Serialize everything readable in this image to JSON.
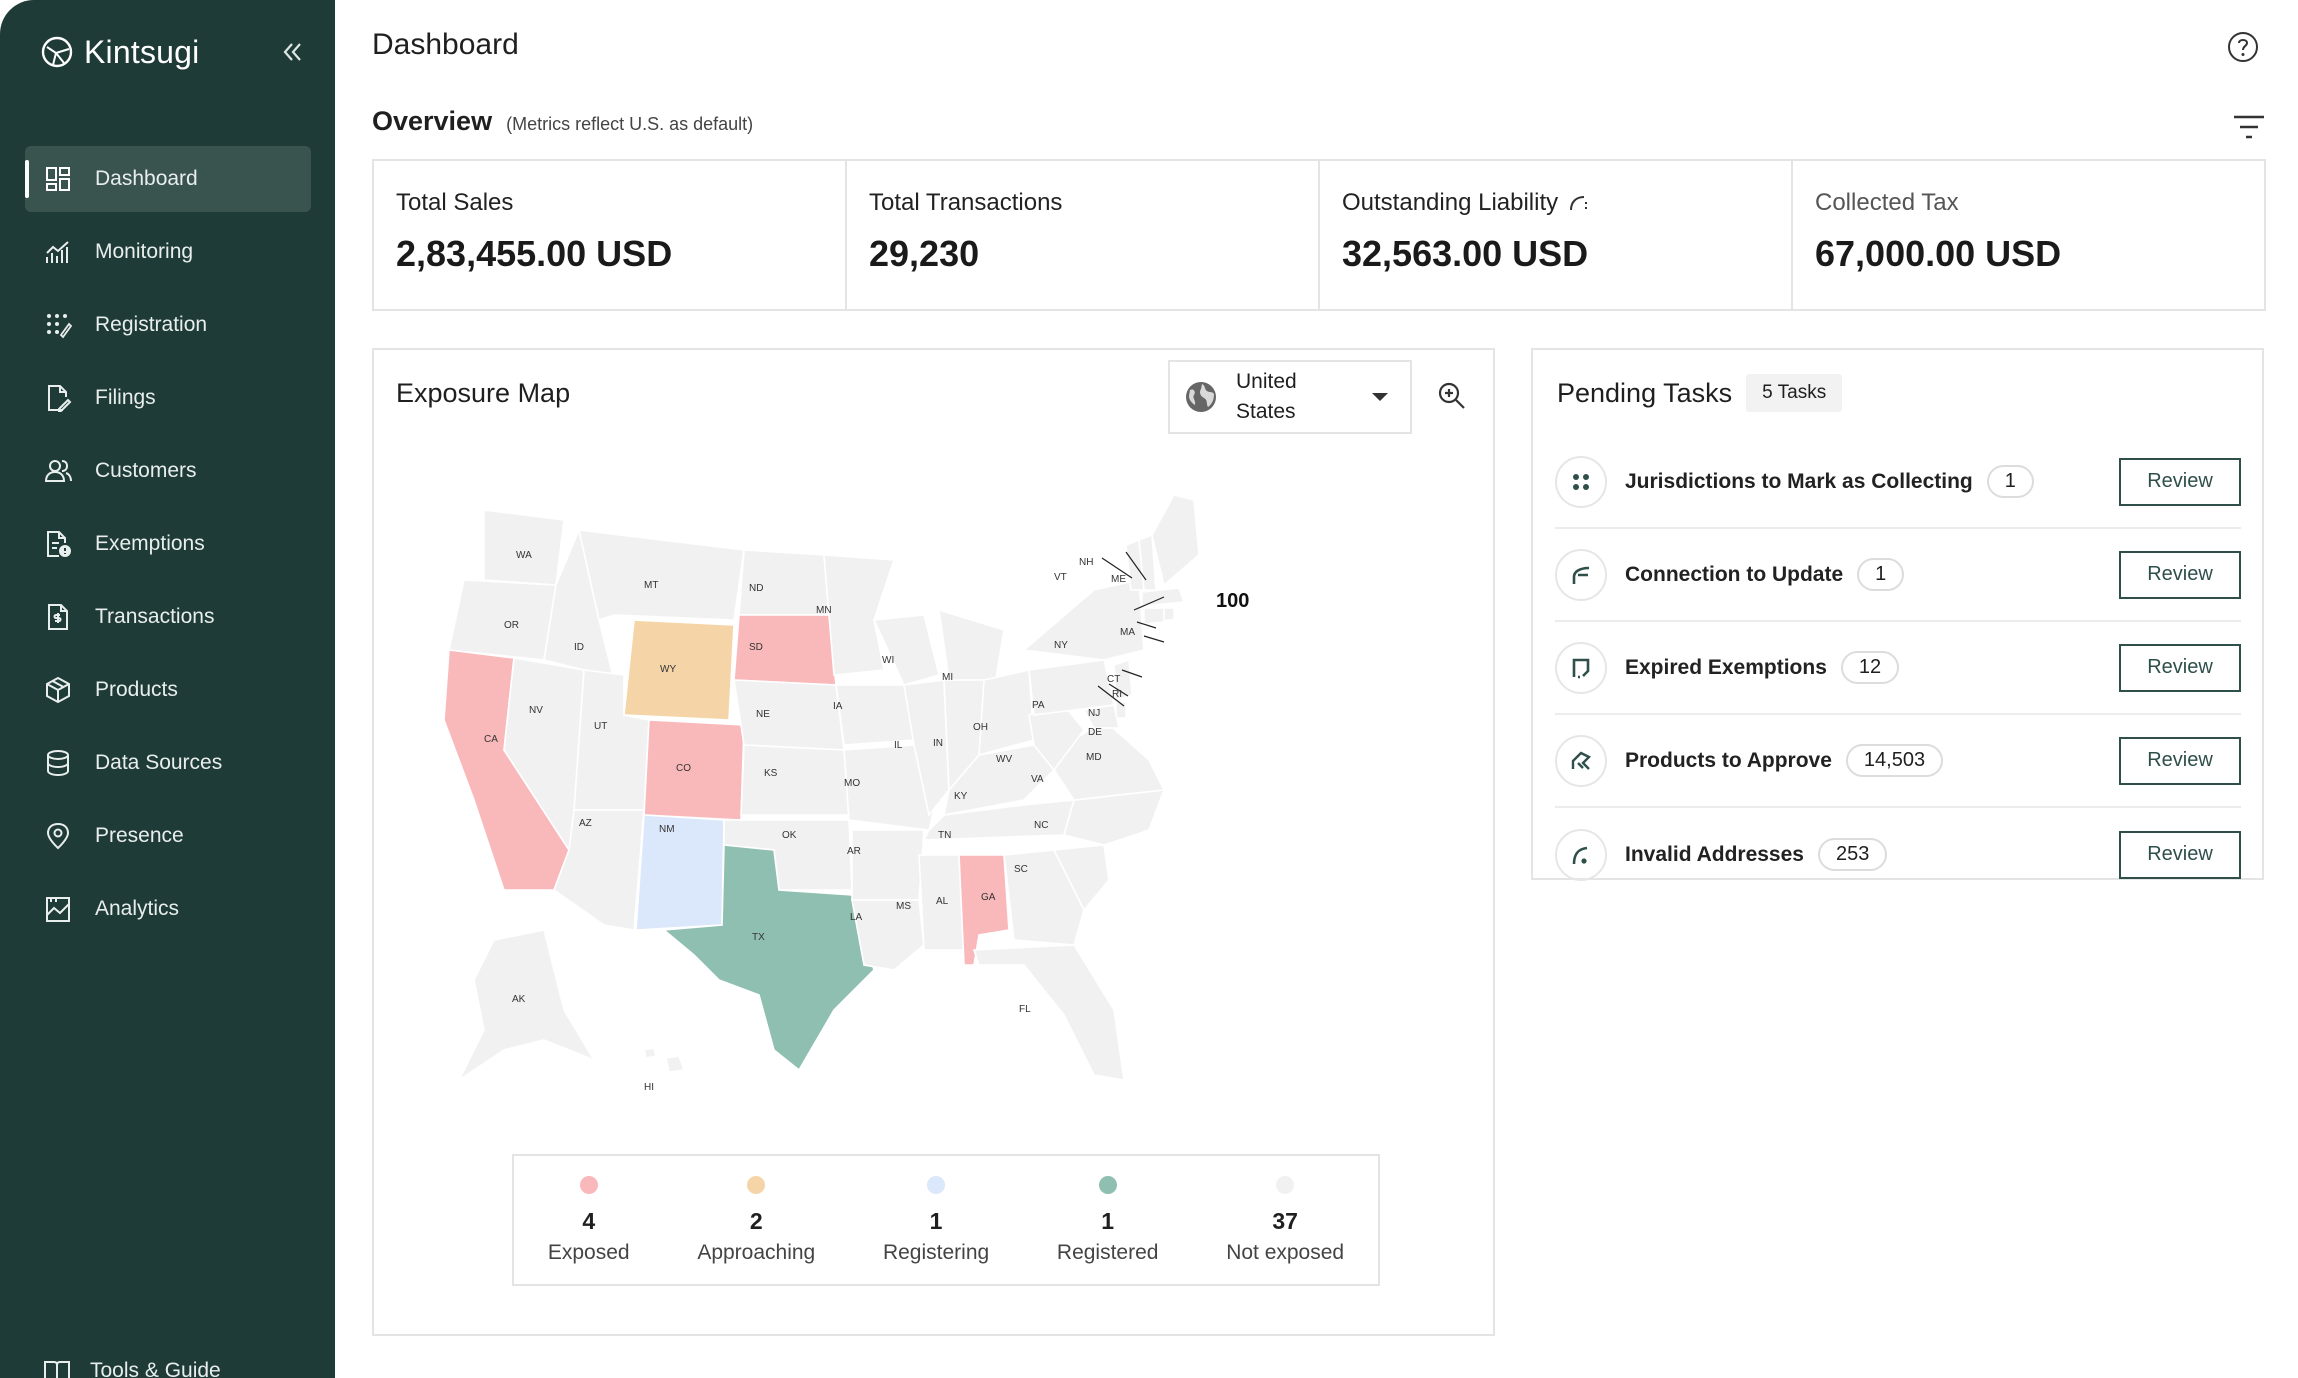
{
  "brand": {
    "name": "Kintsugi"
  },
  "sidebar": {
    "items": [
      {
        "label": "Dashboard",
        "icon": "dashboard-icon",
        "active": true
      },
      {
        "label": "Monitoring",
        "icon": "monitoring-icon"
      },
      {
        "label": "Registration",
        "icon": "registration-icon"
      },
      {
        "label": "Filings",
        "icon": "filings-icon"
      },
      {
        "label": "Customers",
        "icon": "customers-icon"
      },
      {
        "label": "Exemptions",
        "icon": "exemptions-icon"
      },
      {
        "label": "Transactions",
        "icon": "transactions-icon"
      },
      {
        "label": "Products",
        "icon": "products-icon"
      },
      {
        "label": "Data Sources",
        "icon": "data-sources-icon"
      },
      {
        "label": "Presence",
        "icon": "presence-icon"
      },
      {
        "label": "Analytics",
        "icon": "analytics-icon"
      }
    ],
    "footer": {
      "label": "Tools & Guide",
      "icon": "book-icon"
    }
  },
  "header": {
    "title": "Dashboard"
  },
  "overview": {
    "title": "Overview",
    "note": "(Metrics reflect U.S. as default)",
    "metrics": [
      {
        "label": "Total Sales",
        "value": "2,83,455.00 USD"
      },
      {
        "label": "Total Transactions",
        "value": "29,230"
      },
      {
        "label": "Outstanding Liability",
        "value": "32,563.00 USD"
      },
      {
        "label": "Collected Tax",
        "value": "67,000.00 USD"
      }
    ]
  },
  "exposure_map": {
    "title": "Exposure Map",
    "country_line1": "United",
    "country_line2": "States",
    "cluster_label": "100",
    "legend": [
      {
        "count": "4",
        "label": "Exposed",
        "color": "#f9b9bb"
      },
      {
        "count": "2",
        "label": "Approaching",
        "color": "#f5d5a8"
      },
      {
        "count": "1",
        "label": "Registering",
        "color": "#dbe7fb"
      },
      {
        "count": "1",
        "label": "Registered",
        "color": "#8fbfb0"
      },
      {
        "count": "37",
        "label": "Not exposed",
        "color": "#f1f1f1"
      }
    ],
    "states": {
      "WA": "WA",
      "OR": "OR",
      "CA": "CA",
      "NV": "NV",
      "ID": "ID",
      "MT": "MT",
      "WY": "WY",
      "UT": "UT",
      "AZ": "AZ",
      "CO": "CO",
      "NM": "NM",
      "ND": "ND",
      "SD": "SD",
      "NE": "NE",
      "KS": "KS",
      "OK": "OK",
      "TX": "TX",
      "MN": "MN",
      "IA": "IA",
      "MO": "MO",
      "AR": "AR",
      "LA": "LA",
      "WI": "WI",
      "IL": "IL",
      "MI": "MI",
      "IN": "IN",
      "OH": "OH",
      "KY": "KY",
      "TN": "TN",
      "MS": "MS",
      "AL": "AL",
      "GA": "GA",
      "FL": "FL",
      "SC": "SC",
      "NC": "NC",
      "VA": "VA",
      "WV": "WV",
      "PA": "PA",
      "NY": "NY",
      "VT": "VT",
      "NH": "NH",
      "ME": "ME",
      "MA": "MA",
      "RI": "RI",
      "CT": "CT",
      "NJ": "NJ",
      "DE": "DE",
      "MD": "MD",
      "AK": "AK",
      "HI": "HI"
    }
  },
  "pending_tasks": {
    "title": "Pending Tasks",
    "badge": "5 Tasks",
    "button_label": "Review",
    "items": [
      {
        "label": "Jurisdictions to Mark as Collecting",
        "count": "1"
      },
      {
        "label": "Connection to Update",
        "count": "1"
      },
      {
        "label": "Expired Exemptions",
        "count": "12"
      },
      {
        "label": "Products to Approve",
        "count": "14,503"
      },
      {
        "label": "Invalid Addresses",
        "count": "253"
      }
    ]
  }
}
